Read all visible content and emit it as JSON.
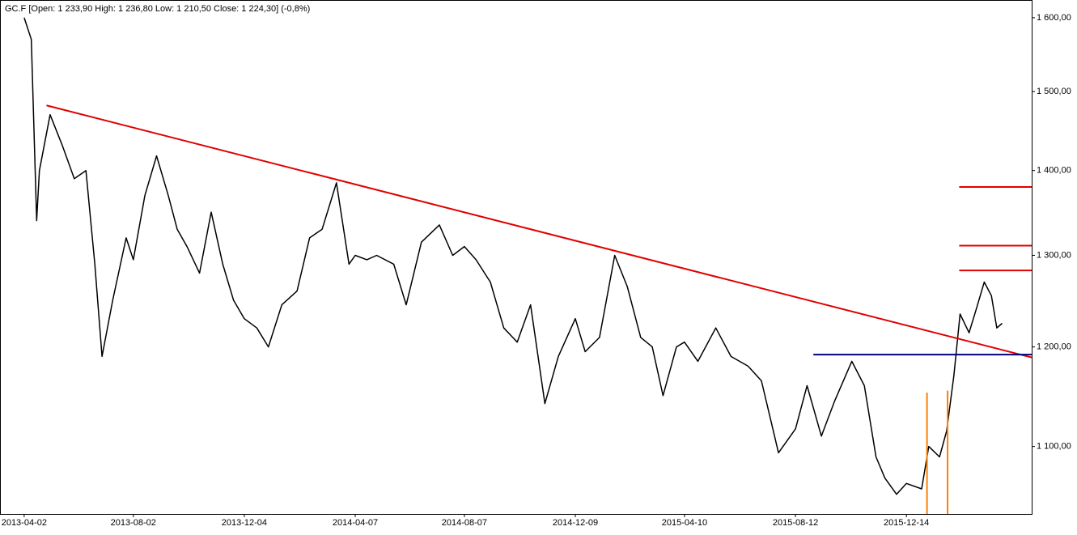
{
  "chart_data": {
    "type": "line",
    "title": "GC.F [Open: 1 233,90  High: 1 236,80  Low: 1 210,50  Close: 1 224,30] (-0,8%)",
    "log_y": true,
    "grid": false,
    "xlim": [
      "2013-03-06",
      "2016-05-02"
    ],
    "xticks": [
      "2013-04-02",
      "2013-08-02",
      "2013-12-04",
      "2014-04-07",
      "2014-08-07",
      "2014-12-09",
      "2015-04-10",
      "2015-08-12",
      "2015-12-14"
    ],
    "ylim": [
      1037,
      1625
    ],
    "yticks": [
      {
        "value": 1100,
        "label": "1 100,00"
      },
      {
        "value": 1200,
        "label": "1 200,00"
      },
      {
        "value": 1300,
        "label": "1 300,00"
      },
      {
        "value": 1400,
        "label": "1 400,00"
      },
      {
        "value": 1500,
        "label": "1 500,00"
      },
      {
        "value": 1600,
        "label": "1 600,00"
      }
    ],
    "x": [
      "2013-04-02",
      "2013-04-10",
      "2013-04-16",
      "2013-04-19",
      "2013-05-01",
      "2013-05-15",
      "2013-05-28",
      "2013-06-10",
      "2013-06-20",
      "2013-06-28",
      "2013-07-10",
      "2013-07-25",
      "2013-08-02",
      "2013-08-15",
      "2013-08-28",
      "2013-09-10",
      "2013-09-20",
      "2013-10-01",
      "2013-10-15",
      "2013-10-28",
      "2013-11-10",
      "2013-11-22",
      "2013-12-04",
      "2013-12-18",
      "2013-12-31",
      "2014-01-15",
      "2014-02-01",
      "2014-02-15",
      "2014-03-01",
      "2014-03-17",
      "2014-03-31",
      "2014-04-07",
      "2014-04-20",
      "2014-05-01",
      "2014-05-20",
      "2014-06-03",
      "2014-06-20",
      "2014-07-10",
      "2014-07-25",
      "2014-08-07",
      "2014-08-20",
      "2014-09-05",
      "2014-09-20",
      "2014-10-05",
      "2014-10-20",
      "2014-11-05",
      "2014-11-20",
      "2014-12-09",
      "2014-12-20",
      "2015-01-05",
      "2015-01-22",
      "2015-02-05",
      "2015-02-20",
      "2015-03-05",
      "2015-03-17",
      "2015-04-01",
      "2015-04-10",
      "2015-04-25",
      "2015-05-15",
      "2015-06-01",
      "2015-06-20",
      "2015-07-05",
      "2015-07-24",
      "2015-08-12",
      "2015-08-25",
      "2015-09-10",
      "2015-09-25",
      "2015-10-14",
      "2015-10-28",
      "2015-11-10",
      "2015-11-20",
      "2015-12-03",
      "2015-12-14",
      "2015-12-31",
      "2016-01-08",
      "2016-01-20",
      "2016-01-28",
      "2016-02-05",
      "2016-02-12",
      "2016-02-22",
      "2016-03-01",
      "2016-03-10",
      "2016-03-18",
      "2016-03-24",
      "2016-03-30"
    ],
    "series": [
      {
        "name": "GC.F",
        "color": "#000000",
        "values": [
          1600,
          1570,
          1340,
          1400,
          1470,
          1430,
          1390,
          1400,
          1290,
          1190,
          1250,
          1320,
          1295,
          1370,
          1418,
          1370,
          1330,
          1310,
          1280,
          1350,
          1290,
          1250,
          1230,
          1220,
          1200,
          1245,
          1260,
          1320,
          1330,
          1385,
          1290,
          1300,
          1295,
          1300,
          1290,
          1245,
          1315,
          1335,
          1300,
          1310,
          1295,
          1270,
          1220,
          1205,
          1245,
          1142,
          1190,
          1230,
          1195,
          1210,
          1300,
          1265,
          1210,
          1200,
          1150,
          1200,
          1205,
          1185,
          1220,
          1190,
          1180,
          1165,
          1094,
          1117,
          1160,
          1110,
          1145,
          1185,
          1160,
          1090,
          1070,
          1055,
          1065,
          1060,
          1100,
          1090,
          1115,
          1170,
          1235,
          1215,
          1240,
          1270,
          1255,
          1220,
          1225
        ]
      }
    ],
    "trendline": {
      "color": "#e00000",
      "x": [
        "2013-04-27",
        "2016-05-02"
      ],
      "values": [
        1482,
        1189
      ]
    },
    "hlines": [
      {
        "color": "#000080",
        "from": "2015-09-01",
        "value": 1192
      },
      {
        "color": "#e00000",
        "from": "2016-02-11",
        "value": 1380
      },
      {
        "color": "#e00000",
        "from": "2016-02-11",
        "value": 1311
      },
      {
        "color": "#e00000",
        "from": "2016-02-11",
        "value": 1283
      }
    ],
    "vlines": [
      {
        "color": "#ff7f00",
        "x": "2016-01-06",
        "top": 1153
      },
      {
        "color": "#ff7f00",
        "x": "2016-01-29",
        "top": 1155
      }
    ]
  }
}
